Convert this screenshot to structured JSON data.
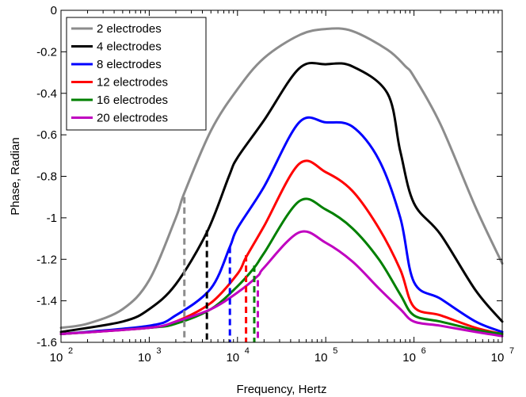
{
  "chart_data": {
    "type": "line",
    "title": "",
    "xlabel": "Frequency, Hertz",
    "ylabel": "Phase, Radian",
    "xscale": "log",
    "xlim": [
      100,
      10000000
    ],
    "ylim": [
      -1.6,
      0
    ],
    "grid": false,
    "legend_position": "top-left",
    "x_ticks": [
      {
        "value": 100,
        "base": "10",
        "exp": "2"
      },
      {
        "value": 1000,
        "base": "10",
        "exp": "3"
      },
      {
        "value": 10000,
        "base": "10",
        "exp": "4"
      },
      {
        "value": 100000,
        "base": "10",
        "exp": "5"
      },
      {
        "value": 1000000,
        "base": "10",
        "exp": "6"
      },
      {
        "value": 10000000,
        "base": "10",
        "exp": "7"
      }
    ],
    "y_ticks": [
      {
        "value": 0,
        "label": "0"
      },
      {
        "value": -0.2,
        "label": "-0.2"
      },
      {
        "value": -0.4,
        "label": "-0.4"
      },
      {
        "value": -0.6,
        "label": "-0.6"
      },
      {
        "value": -0.8,
        "label": "-0.8"
      },
      {
        "value": -1.0,
        "label": "-1"
      },
      {
        "value": -1.2,
        "label": "-1.2"
      },
      {
        "value": -1.4,
        "label": "-1.4"
      },
      {
        "value": -1.6,
        "label": "-1.6"
      }
    ],
    "series": [
      {
        "name": "2 electrodes",
        "color": "#8c8c8c",
        "x": [
          100,
          200,
          500,
          1000,
          2000,
          2500,
          5000,
          10000,
          20000,
          50000,
          100000,
          200000,
          500000,
          800000,
          1000000,
          2000000,
          5000000,
          10000000
        ],
        "y": [
          -1.53,
          -1.51,
          -1.44,
          -1.3,
          -1.0,
          -0.88,
          -0.58,
          -0.38,
          -0.23,
          -0.12,
          -0.09,
          -0.1,
          -0.19,
          -0.27,
          -0.32,
          -0.55,
          -0.95,
          -1.22
        ],
        "marker": {
          "x": 2500,
          "y": -0.9
        }
      },
      {
        "name": "4 electrodes",
        "color": "#000000",
        "x": [
          100,
          500,
          1000,
          2000,
          4500,
          8000,
          10000,
          20000,
          50000,
          100000,
          200000,
          500000,
          700000,
          1000000,
          2000000,
          5000000,
          10000000
        ],
        "y": [
          -1.55,
          -1.5,
          -1.44,
          -1.32,
          -1.07,
          -0.8,
          -0.71,
          -0.53,
          -0.28,
          -0.26,
          -0.27,
          -0.4,
          -0.68,
          -0.93,
          -1.08,
          -1.35,
          -1.5
        ],
        "marker": {
          "x": 4500,
          "y": -1.06
        }
      },
      {
        "name": "8 electrodes",
        "color": "#0000ff",
        "x": [
          100,
          1000,
          2000,
          5000,
          8200,
          10000,
          20000,
          50000,
          100000,
          200000,
          400000,
          700000,
          1000000,
          2000000,
          5000000,
          10000000
        ],
        "y": [
          -1.56,
          -1.52,
          -1.47,
          -1.34,
          -1.14,
          -1.05,
          -0.85,
          -0.54,
          -0.54,
          -0.56,
          -0.72,
          -1.0,
          -1.31,
          -1.39,
          -1.5,
          -1.55
        ],
        "marker": {
          "x": 8200,
          "y": -1.14
        }
      },
      {
        "name": "12 electrodes",
        "color": "#ff0000",
        "x": [
          100,
          1000,
          2000,
          5000,
          10000,
          12500,
          20000,
          50000,
          100000,
          200000,
          400000,
          700000,
          1000000,
          2000000,
          5000000,
          10000000
        ],
        "y": [
          -1.56,
          -1.53,
          -1.5,
          -1.41,
          -1.27,
          -1.19,
          -1.04,
          -0.74,
          -0.78,
          -0.87,
          -1.05,
          -1.25,
          -1.43,
          -1.47,
          -1.53,
          -1.56
        ],
        "marker": {
          "x": 12500,
          "y": -1.18
        }
      },
      {
        "name": "16 electrodes",
        "color": "#008000",
        "x": [
          100,
          1000,
          2000,
          5000,
          10000,
          15500,
          20000,
          50000,
          100000,
          200000,
          400000,
          700000,
          1000000,
          2000000,
          5000000,
          10000000
        ],
        "y": [
          -1.56,
          -1.53,
          -1.51,
          -1.44,
          -1.33,
          -1.24,
          -1.17,
          -0.92,
          -0.96,
          -1.05,
          -1.2,
          -1.37,
          -1.47,
          -1.5,
          -1.54,
          -1.56
        ],
        "marker": {
          "x": 15500,
          "y": -1.23
        }
      },
      {
        "name": "20 electrodes",
        "color": "#c000c0",
        "x": [
          100,
          1000,
          2000,
          5000,
          10000,
          17000,
          20000,
          50000,
          100000,
          200000,
          400000,
          700000,
          1000000,
          2000000,
          5000000,
          10000000
        ],
        "y": [
          -1.56,
          -1.53,
          -1.5,
          -1.44,
          -1.36,
          -1.28,
          -1.24,
          -1.07,
          -1.12,
          -1.21,
          -1.34,
          -1.44,
          -1.5,
          -1.52,
          -1.55,
          -1.57
        ],
        "marker": {
          "x": 17000,
          "y": -1.3
        }
      }
    ]
  }
}
